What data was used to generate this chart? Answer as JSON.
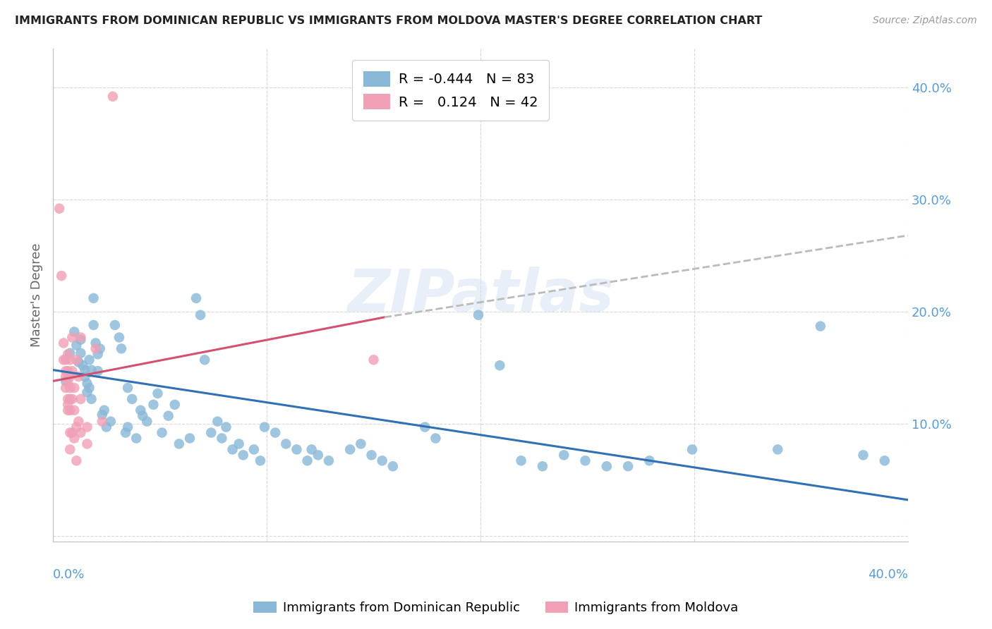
{
  "title": "IMMIGRANTS FROM DOMINICAN REPUBLIC VS IMMIGRANTS FROM MOLDOVA MASTER'S DEGREE CORRELATION CHART",
  "source": "Source: ZipAtlas.com",
  "ylabel": "Master's Degree",
  "xlim": [
    0.0,
    0.4
  ],
  "ylim": [
    -0.005,
    0.435
  ],
  "ytick_positions": [
    0.0,
    0.1,
    0.2,
    0.3,
    0.4
  ],
  "blue_color": "#89b8d8",
  "pink_color": "#f0a0b5",
  "blue_line_color": "#3070b5",
  "pink_line_color": "#d45070",
  "gray_dash_color": "#bbbbbb",
  "grid_color": "#d8d8d8",
  "right_tick_color": "#5b9bd5",
  "watermark": "ZIPatlas",
  "blue_scatter": [
    [
      0.006,
      0.138
    ],
    [
      0.008,
      0.163
    ],
    [
      0.01,
      0.182
    ],
    [
      0.011,
      0.17
    ],
    [
      0.012,
      0.155
    ],
    [
      0.013,
      0.163
    ],
    [
      0.013,
      0.175
    ],
    [
      0.014,
      0.152
    ],
    [
      0.015,
      0.148
    ],
    [
      0.015,
      0.142
    ],
    [
      0.016,
      0.136
    ],
    [
      0.016,
      0.128
    ],
    [
      0.017,
      0.157
    ],
    [
      0.017,
      0.132
    ],
    [
      0.018,
      0.148
    ],
    [
      0.018,
      0.122
    ],
    [
      0.019,
      0.212
    ],
    [
      0.019,
      0.188
    ],
    [
      0.02,
      0.172
    ],
    [
      0.021,
      0.162
    ],
    [
      0.021,
      0.147
    ],
    [
      0.022,
      0.167
    ],
    [
      0.023,
      0.108
    ],
    [
      0.024,
      0.112
    ],
    [
      0.025,
      0.097
    ],
    [
      0.027,
      0.102
    ],
    [
      0.029,
      0.188
    ],
    [
      0.031,
      0.177
    ],
    [
      0.032,
      0.167
    ],
    [
      0.034,
      0.092
    ],
    [
      0.035,
      0.132
    ],
    [
      0.035,
      0.097
    ],
    [
      0.037,
      0.122
    ],
    [
      0.039,
      0.087
    ],
    [
      0.041,
      0.112
    ],
    [
      0.042,
      0.107
    ],
    [
      0.044,
      0.102
    ],
    [
      0.047,
      0.117
    ],
    [
      0.049,
      0.127
    ],
    [
      0.051,
      0.092
    ],
    [
      0.054,
      0.107
    ],
    [
      0.057,
      0.117
    ],
    [
      0.059,
      0.082
    ],
    [
      0.064,
      0.087
    ],
    [
      0.067,
      0.212
    ],
    [
      0.069,
      0.197
    ],
    [
      0.071,
      0.157
    ],
    [
      0.074,
      0.092
    ],
    [
      0.077,
      0.102
    ],
    [
      0.079,
      0.087
    ],
    [
      0.081,
      0.097
    ],
    [
      0.084,
      0.077
    ],
    [
      0.087,
      0.082
    ],
    [
      0.089,
      0.072
    ],
    [
      0.094,
      0.077
    ],
    [
      0.097,
      0.067
    ],
    [
      0.099,
      0.097
    ],
    [
      0.104,
      0.092
    ],
    [
      0.109,
      0.082
    ],
    [
      0.114,
      0.077
    ],
    [
      0.119,
      0.067
    ],
    [
      0.121,
      0.077
    ],
    [
      0.124,
      0.072
    ],
    [
      0.129,
      0.067
    ],
    [
      0.139,
      0.077
    ],
    [
      0.144,
      0.082
    ],
    [
      0.149,
      0.072
    ],
    [
      0.154,
      0.067
    ],
    [
      0.159,
      0.062
    ],
    [
      0.174,
      0.097
    ],
    [
      0.179,
      0.087
    ],
    [
      0.199,
      0.197
    ],
    [
      0.209,
      0.152
    ],
    [
      0.219,
      0.067
    ],
    [
      0.229,
      0.062
    ],
    [
      0.239,
      0.072
    ],
    [
      0.249,
      0.067
    ],
    [
      0.259,
      0.062
    ],
    [
      0.269,
      0.062
    ],
    [
      0.279,
      0.067
    ],
    [
      0.299,
      0.077
    ],
    [
      0.339,
      0.077
    ],
    [
      0.359,
      0.187
    ],
    [
      0.379,
      0.072
    ],
    [
      0.389,
      0.067
    ]
  ],
  "pink_scatter": [
    [
      0.003,
      0.292
    ],
    [
      0.004,
      0.232
    ],
    [
      0.005,
      0.172
    ],
    [
      0.005,
      0.157
    ],
    [
      0.006,
      0.147
    ],
    [
      0.006,
      0.157
    ],
    [
      0.006,
      0.142
    ],
    [
      0.006,
      0.132
    ],
    [
      0.007,
      0.162
    ],
    [
      0.007,
      0.147
    ],
    [
      0.007,
      0.137
    ],
    [
      0.007,
      0.122
    ],
    [
      0.007,
      0.117
    ],
    [
      0.007,
      0.112
    ],
    [
      0.008,
      0.157
    ],
    [
      0.008,
      0.142
    ],
    [
      0.008,
      0.132
    ],
    [
      0.008,
      0.122
    ],
    [
      0.008,
      0.112
    ],
    [
      0.008,
      0.092
    ],
    [
      0.008,
      0.077
    ],
    [
      0.009,
      0.177
    ],
    [
      0.009,
      0.147
    ],
    [
      0.009,
      0.122
    ],
    [
      0.009,
      0.092
    ],
    [
      0.01,
      0.132
    ],
    [
      0.01,
      0.112
    ],
    [
      0.01,
      0.087
    ],
    [
      0.011,
      0.157
    ],
    [
      0.011,
      0.097
    ],
    [
      0.011,
      0.067
    ],
    [
      0.012,
      0.142
    ],
    [
      0.012,
      0.102
    ],
    [
      0.013,
      0.177
    ],
    [
      0.013,
      0.122
    ],
    [
      0.013,
      0.092
    ],
    [
      0.016,
      0.097
    ],
    [
      0.016,
      0.082
    ],
    [
      0.02,
      0.167
    ],
    [
      0.023,
      0.102
    ],
    [
      0.028,
      0.392
    ],
    [
      0.15,
      0.157
    ]
  ],
  "blue_trend": {
    "x_start": 0.0,
    "y_start": 0.148,
    "x_end": 0.4,
    "y_end": 0.032
  },
  "pink_solid_trend": {
    "x_start": 0.0,
    "y_start": 0.138,
    "x_end": 0.155,
    "y_end": 0.195
  },
  "pink_dash_trend": {
    "x_start": 0.155,
    "y_start": 0.195,
    "x_end": 0.4,
    "y_end": 0.268
  }
}
